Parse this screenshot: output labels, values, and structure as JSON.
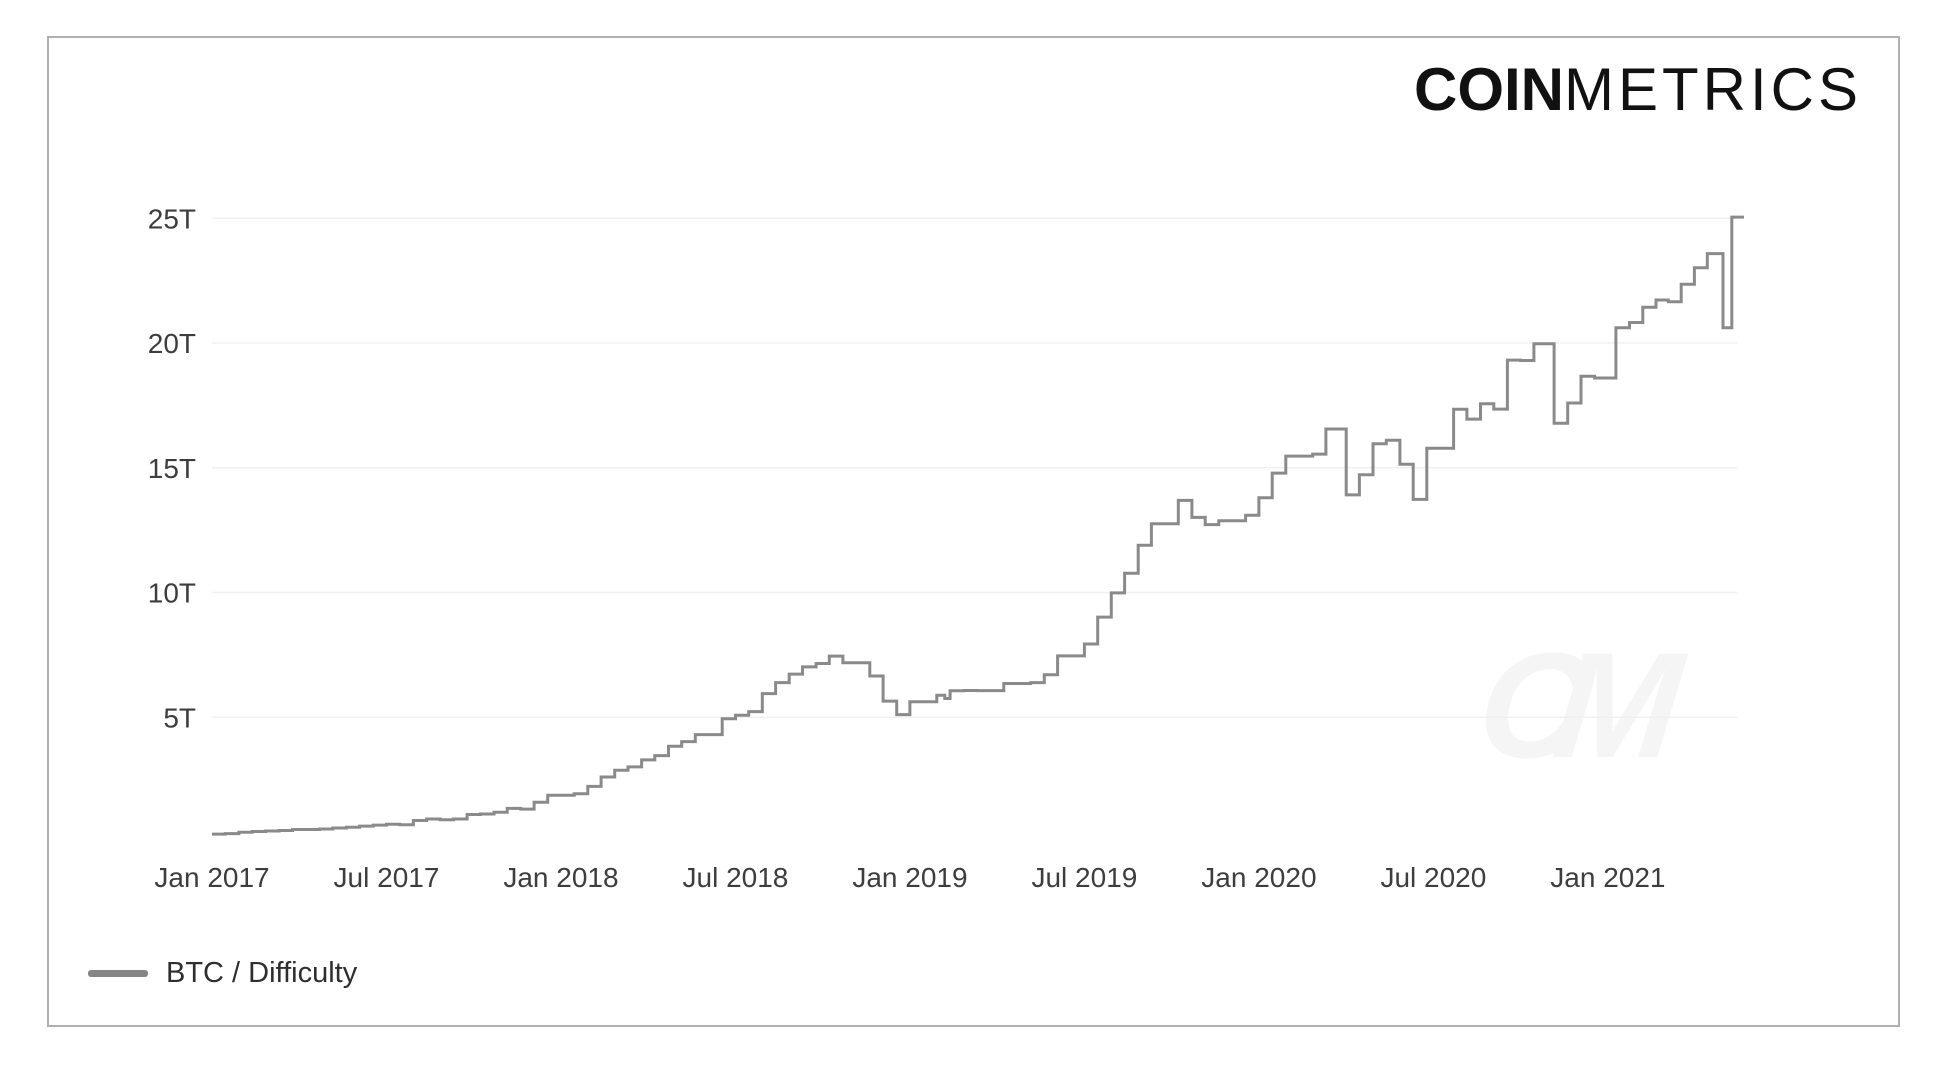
{
  "brand": {
    "bold": "COIN",
    "light": "METRICS"
  },
  "watermark": {
    "text": "CM"
  },
  "legend": {
    "label": "BTC / Difficulty",
    "swatch_color": "#858585"
  },
  "colors": {
    "line": "#8a8a8a",
    "grid": "#f0f0f0",
    "axis_text": "#3d3d3d",
    "border": "#b0b0b0",
    "watermark": "#f5f5f5"
  },
  "chart_data": {
    "type": "line",
    "line_style": "step-after",
    "series": [
      {
        "name": "BTC / Difficulty",
        "unit": "T (trillions)"
      }
    ],
    "title": "",
    "xlabel": "",
    "ylabel": "",
    "grid": "horizontal-only",
    "legend_position": "bottom-left",
    "xlim": [
      2017.0,
      2021.39
    ],
    "ylim": [
      0,
      26.5
    ],
    "x_ticks": [
      {
        "t": 2017.0,
        "label": "Jan 2017"
      },
      {
        "t": 2017.5,
        "label": "Jul 2017"
      },
      {
        "t": 2018.0,
        "label": "Jan 2018"
      },
      {
        "t": 2018.5,
        "label": "Jul 2018"
      },
      {
        "t": 2019.0,
        "label": "Jan 2019"
      },
      {
        "t": 2019.5,
        "label": "Jul 2019"
      },
      {
        "t": 2020.0,
        "label": "Jan 2020"
      },
      {
        "t": 2020.5,
        "label": "Jul 2020"
      },
      {
        "t": 2021.0,
        "label": "Jan 2021"
      }
    ],
    "y_ticks": [
      {
        "v": 5,
        "label": "5T"
      },
      {
        "v": 10,
        "label": "10T"
      },
      {
        "v": 15,
        "label": "15T"
      },
      {
        "v": 20,
        "label": "20T"
      },
      {
        "v": 25,
        "label": "25T"
      }
    ],
    "points": [
      [
        2017.0,
        0.3176
      ],
      [
        2017.038,
        0.336
      ],
      [
        2017.077,
        0.3929
      ],
      [
        2017.115,
        0.4212
      ],
      [
        2017.154,
        0.4405
      ],
      [
        2017.192,
        0.4608
      ],
      [
        2017.231,
        0.4997
      ],
      [
        2017.269,
        0.4997
      ],
      [
        2017.308,
        0.5216
      ],
      [
        2017.346,
        0.5594
      ],
      [
        2017.385,
        0.5951
      ],
      [
        2017.423,
        0.6379
      ],
      [
        2017.462,
        0.6789
      ],
      [
        2017.5,
        0.7094
      ],
      [
        2017.538,
        0.6952
      ],
      [
        2017.577,
        0.8604
      ],
      [
        2017.615,
        0.9234
      ],
      [
        2017.654,
        0.888
      ],
      [
        2017.692,
        0.9224
      ],
      [
        2017.731,
        1.1031
      ],
      [
        2017.769,
        1.1231
      ],
      [
        2017.808,
        1.1892
      ],
      [
        2017.846,
        1.3468
      ],
      [
        2017.885,
        1.32
      ],
      [
        2017.923,
        1.5905
      ],
      [
        2017.962,
        1.8735
      ],
      [
        2018.0,
        1.8735
      ],
      [
        2018.038,
        1.9318
      ],
      [
        2018.077,
        2.2275
      ],
      [
        2018.115,
        2.6036
      ],
      [
        2018.154,
        2.874
      ],
      [
        2018.192,
        3.0114
      ],
      [
        2018.231,
        3.2905
      ],
      [
        2018.269,
        3.4624
      ],
      [
        2018.308,
        3.8399
      ],
      [
        2018.346,
        4.0234
      ],
      [
        2018.385,
        4.3065
      ],
      [
        2018.423,
        4.3065
      ],
      [
        2018.462,
        4.9431
      ],
      [
        2018.5,
        5.0772
      ],
      [
        2018.538,
        5.2278
      ],
      [
        2018.577,
        5.9493
      ],
      [
        2018.615,
        6.3898
      ],
      [
        2018.654,
        6.7278
      ],
      [
        2018.692,
        7.0195
      ],
      [
        2018.731,
        7.1524
      ],
      [
        2018.769,
        7.4527
      ],
      [
        2018.808,
        7.1839
      ],
      [
        2018.846,
        7.1847
      ],
      [
        2018.885,
        6.6533
      ],
      [
        2018.923,
        5.6463
      ],
      [
        2018.962,
        5.1061
      ],
      [
        2019.0,
        5.6186
      ],
      [
        2019.038,
        5.6186
      ],
      [
        2019.077,
        5.8825
      ],
      [
        2019.1,
        5.75
      ],
      [
        2019.115,
        6.0613
      ],
      [
        2019.154,
        6.0713
      ],
      [
        2019.192,
        6.0686
      ],
      [
        2019.231,
        6.0686
      ],
      [
        2019.269,
        6.3531
      ],
      [
        2019.308,
        6.3531
      ],
      [
        2019.346,
        6.3891
      ],
      [
        2019.385,
        6.7029
      ],
      [
        2019.423,
        7.4597
      ],
      [
        2019.462,
        7.4597
      ],
      [
        2019.5,
        7.9346
      ],
      [
        2019.538,
        9.0134
      ],
      [
        2019.577,
        9.9855
      ],
      [
        2019.615,
        10.7716
      ],
      [
        2019.654,
        11.8902
      ],
      [
        2019.692,
        12.7594
      ],
      [
        2019.731,
        12.7594
      ],
      [
        2019.769,
        13.6916
      ],
      [
        2019.808,
        13.0083
      ],
      [
        2019.846,
        12.7204
      ],
      [
        2019.885,
        12.8763
      ],
      [
        2019.923,
        12.8763
      ],
      [
        2019.962,
        13.0981
      ],
      [
        2020.0,
        13.7981
      ],
      [
        2020.038,
        14.784
      ],
      [
        2020.077,
        15.466
      ],
      [
        2020.115,
        15.466
      ],
      [
        2020.154,
        15.5463
      ],
      [
        2020.192,
        16.5549
      ],
      [
        2020.231,
        16.5549
      ],
      [
        2020.25,
        13.9126
      ],
      [
        2020.288,
        14.7158
      ],
      [
        2020.327,
        15.9585
      ],
      [
        2020.365,
        16.1046
      ],
      [
        2020.404,
        15.1388
      ],
      [
        2020.442,
        13.7325
      ],
      [
        2020.481,
        15.7847
      ],
      [
        2020.519,
        15.7847
      ],
      [
        2020.558,
        17.3453
      ],
      [
        2020.596,
        16.9479
      ],
      [
        2020.635,
        17.5617
      ],
      [
        2020.673,
        17.35
      ],
      [
        2020.712,
        19.3148
      ],
      [
        2020.75,
        19.2984
      ],
      [
        2020.788,
        19.9731
      ],
      [
        2020.846,
        16.7875
      ],
      [
        2020.885,
        17.5967
      ],
      [
        2020.923,
        18.6705
      ],
      [
        2020.962,
        18.599
      ],
      [
        2021.0,
        18.599
      ],
      [
        2021.023,
        20.6074
      ],
      [
        2021.062,
        20.8234
      ],
      [
        2021.1,
        21.4347
      ],
      [
        2021.138,
        21.7244
      ],
      [
        2021.173,
        21.65
      ],
      [
        2021.21,
        22.3549
      ],
      [
        2021.248,
        23.0141
      ],
      [
        2021.285,
        23.5817
      ],
      [
        2021.33,
        20.6074
      ],
      [
        2021.355,
        25.0461
      ],
      [
        2021.39,
        25.0461
      ]
    ]
  }
}
